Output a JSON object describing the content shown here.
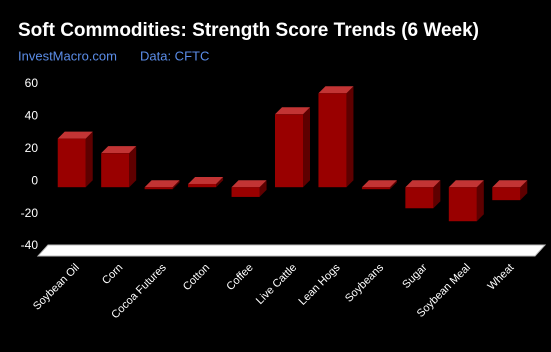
{
  "chart_data": {
    "type": "bar3d",
    "title": "Soft Commodities: Strength Score Trends (6 Week)",
    "site": "InvestMacro.com",
    "source": "Data: CFTC",
    "categories": [
      "Soybean Oil",
      "Corn",
      "Cocoa Futures",
      "Cotton",
      "Coffee",
      "Live Cattle",
      "Lean Hogs",
      "Soybeans",
      "Sugar",
      "Soybean Meal",
      "Wheat"
    ],
    "values": [
      30,
      21,
      0,
      2,
      -6,
      45,
      58,
      0,
      -13,
      -21,
      -8
    ],
    "color": "#990000",
    "ylim": [
      -40,
      60
    ],
    "yticks": [
      -40,
      -20,
      0,
      20,
      40,
      60
    ],
    "grid": false
  }
}
